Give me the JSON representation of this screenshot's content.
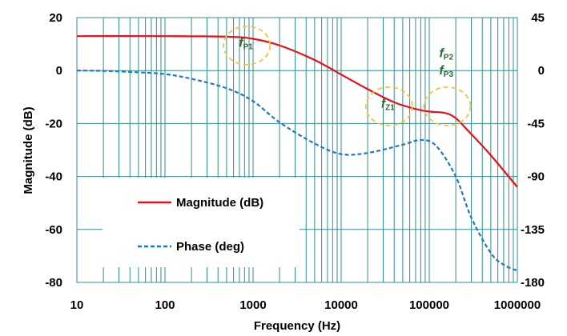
{
  "chart_data": {
    "type": "line",
    "xlabel": "Frequency (Hz)",
    "ylabel": "Magnitude (dB)",
    "x_scale": "log",
    "xlim": [
      10,
      1000000
    ],
    "ylim": [
      -80,
      20
    ],
    "y2lim": [
      -180,
      45
    ],
    "x_ticks": [
      "10",
      "100",
      "1000",
      "10000",
      "100000",
      "1000000"
    ],
    "y_ticks": [
      "20",
      "0",
      "-20",
      "-40",
      "-60",
      "-80"
    ],
    "y2_ticks": [
      "45",
      "0",
      "-45",
      "-90",
      "-135",
      "-180"
    ],
    "grid": true,
    "legend_position": "lower-left",
    "series": [
      {
        "name": "Magnitude (dB)",
        "axis": "left",
        "color": "#e8101a",
        "line_style": "solid",
        "x": [
          10,
          100,
          500,
          1000,
          2000,
          5000,
          10000,
          20000,
          40000,
          70000,
          100000,
          150000,
          200000,
          300000,
          500000,
          1000000
        ],
        "y": [
          13,
          13,
          12.8,
          12,
          9.5,
          4,
          -1.5,
          -7,
          -12,
          -14.5,
          -15.5,
          -16,
          -18,
          -24,
          -32,
          -44
        ]
      },
      {
        "name": "Phase (deg)",
        "axis": "right",
        "color": "#1f78c0",
        "line_style": "dashed",
        "x": [
          10,
          20,
          50,
          100,
          200,
          500,
          1000,
          2000,
          5000,
          10000,
          20000,
          50000,
          80000,
          120000,
          200000,
          300000,
          500000,
          700000,
          1000000
        ],
        "y": [
          0,
          -0.3,
          -1.5,
          -3,
          -7,
          -15,
          -26,
          -44,
          -62,
          -71,
          -70,
          -63,
          -59,
          -64,
          -90,
          -125,
          -155,
          -165,
          -170
        ]
      }
    ],
    "annotations": [
      {
        "main": "f",
        "sub": "P1",
        "x": 850,
        "y": 9
      },
      {
        "main": "f",
        "sub": "Z1",
        "x": 35000,
        "y": -14
      },
      {
        "main": "f",
        "sub": "P2",
        "x": 160000,
        "y": 5
      },
      {
        "main": "f",
        "sub": "P3",
        "x": 160000,
        "y": -1.5
      }
    ],
    "highlight_circles": [
      {
        "x": 850,
        "y": 9.5,
        "label": "fP1"
      },
      {
        "x": 35000,
        "y": -13.5,
        "label": "fZ1"
      },
      {
        "x": 160000,
        "y": -13.5,
        "label": "fP2 fP3"
      }
    ]
  }
}
